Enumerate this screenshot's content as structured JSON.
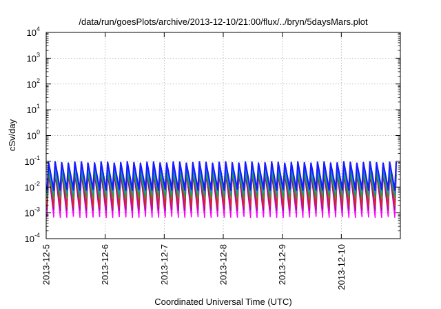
{
  "chart_data": {
    "type": "line",
    "title": "/data/run/goesPlots/archive/2013-12-10/21:00/flux/../bryn/5daysMars.plot",
    "xlabel": "Coordinated Universal Time (UTC)",
    "ylabel": "cSv/day",
    "yscale": "log",
    "ylim": [
      0.0001,
      10000
    ],
    "ytick_labels": [
      {
        "value": 0.0001,
        "mantissa": "10",
        "exponent": "-4"
      },
      {
        "value": 0.001,
        "mantissa": "10",
        "exponent": "-3"
      },
      {
        "value": 0.01,
        "mantissa": "10",
        "exponent": "-2"
      },
      {
        "value": 0.1,
        "mantissa": "10",
        "exponent": "-1"
      },
      {
        "value": 1,
        "mantissa": "10",
        "exponent": "0"
      },
      {
        "value": 10,
        "mantissa": "10",
        "exponent": "1"
      },
      {
        "value": 100,
        "mantissa": "10",
        "exponent": "2"
      },
      {
        "value": 1000,
        "mantissa": "10",
        "exponent": "3"
      },
      {
        "value": 10000,
        "mantissa": "10",
        "exponent": "4"
      }
    ],
    "xlim": [
      "2013-12-05",
      "2013-12-11"
    ],
    "xtick_labels": [
      "2013-12-5",
      "2013-12-6",
      "2013-12-7",
      "2013-12-8",
      "2013-12-9",
      "2013-12-10"
    ],
    "xticks": [
      "2013-12-05",
      "2013-12-06",
      "2013-12-07",
      "2013-12-08",
      "2013-12-09",
      "2013-12-10"
    ],
    "grid": true,
    "pattern": {
      "shape": "sawtooth",
      "cycles_per_day": 9,
      "peak_value": 0.1,
      "trough_value": 0.001
    },
    "series_colors": [
      "#1a1aff",
      "#00a0c8",
      "#2ca02c",
      "#d62728",
      "#8b1a8b",
      "#ff00ff"
    ],
    "series_levels": [
      {
        "color": "#1a1aff",
        "max": 0.09,
        "min": 0.008
      },
      {
        "color": "#00a0c8",
        "max": 0.055,
        "min": 0.006
      },
      {
        "color": "#2ca02c",
        "max": 0.035,
        "min": 0.004
      },
      {
        "color": "#d62728",
        "max": 0.075,
        "min": 0.0018
      },
      {
        "color": "#8b1a8b",
        "max": 0.03,
        "min": 0.0013
      },
      {
        "color": "#ff00ff",
        "max": 0.045,
        "min": 0.0007
      }
    ]
  }
}
